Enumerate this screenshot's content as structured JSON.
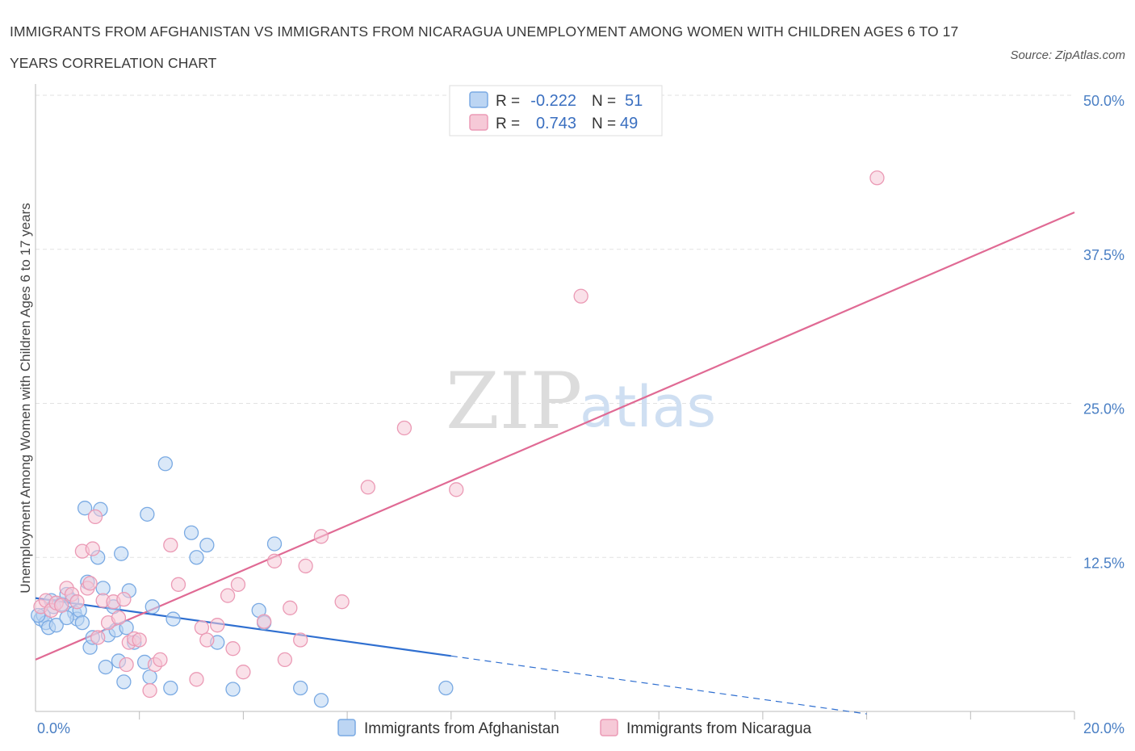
{
  "chart_data": {
    "type": "scatter",
    "title": "IMMIGRANTS FROM AFGHANISTAN VS IMMIGRANTS FROM NICARAGUA UNEMPLOYMENT AMONG WOMEN WITH CHILDREN AGES 6 TO 17 YEARS CORRELATION CHART",
    "source": "Source: ZipAtlas.com",
    "ylabel": "Unemployment Among Women with Children Ages 6 to 17 years",
    "xlim": [
      0,
      20
    ],
    "ylim": [
      0,
      50
    ],
    "x_tick_labels": [
      "0.0%",
      "20.0%"
    ],
    "y_ticks": [
      12.5,
      25.0,
      37.5,
      50.0
    ],
    "y_tick_labels": [
      "12.5%",
      "25.0%",
      "37.5%",
      "50.0%"
    ],
    "watermark": {
      "zip": "ZIP",
      "atlas": "atlas"
    },
    "legend": {
      "r_label": "R =",
      "n_label": "N =",
      "rows": [
        {
          "r": "-0.222",
          "n": "51"
        },
        {
          "r": "0.743",
          "n": "49"
        }
      ]
    },
    "series": [
      {
        "name": "Immigrants from Afghanistan",
        "color": "#7aaae3",
        "fill": "#bcd5f3",
        "line_color": "#2f6fd0",
        "trend": {
          "x0": 0.0,
          "y0": 9.2,
          "x1": 8.0,
          "y1": 4.5,
          "dash_to_x": 16.0
        },
        "points": [
          [
            0.1,
            7.5
          ],
          [
            0.15,
            7.8
          ],
          [
            0.2,
            7.2
          ],
          [
            0.25,
            6.8
          ],
          [
            0.3,
            9.0
          ],
          [
            0.35,
            8.5
          ],
          [
            0.4,
            7.0
          ],
          [
            0.5,
            8.7
          ],
          [
            0.6,
            9.5
          ],
          [
            0.7,
            9.0
          ],
          [
            0.75,
            8.0
          ],
          [
            0.8,
            7.5
          ],
          [
            0.85,
            8.2
          ],
          [
            0.9,
            7.2
          ],
          [
            0.95,
            16.5
          ],
          [
            1.0,
            10.5
          ],
          [
            1.05,
            5.2
          ],
          [
            1.1,
            6.0
          ],
          [
            1.2,
            12.5
          ],
          [
            1.25,
            16.4
          ],
          [
            1.3,
            10.0
          ],
          [
            1.35,
            3.6
          ],
          [
            1.4,
            6.2
          ],
          [
            1.5,
            8.5
          ],
          [
            1.55,
            6.6
          ],
          [
            1.6,
            4.1
          ],
          [
            1.65,
            12.8
          ],
          [
            1.7,
            2.4
          ],
          [
            1.75,
            6.8
          ],
          [
            1.8,
            9.8
          ],
          [
            1.9,
            5.6
          ],
          [
            2.1,
            4.0
          ],
          [
            2.15,
            16.0
          ],
          [
            2.2,
            2.8
          ],
          [
            2.25,
            8.5
          ],
          [
            2.5,
            20.1
          ],
          [
            2.6,
            1.9
          ],
          [
            2.65,
            7.5
          ],
          [
            3.0,
            14.5
          ],
          [
            3.1,
            12.5
          ],
          [
            3.3,
            13.5
          ],
          [
            3.5,
            5.6
          ],
          [
            3.8,
            1.8
          ],
          [
            4.3,
            8.2
          ],
          [
            4.4,
            7.2
          ],
          [
            4.6,
            13.6
          ],
          [
            5.1,
            1.9
          ],
          [
            5.5,
            0.9
          ],
          [
            7.9,
            1.9
          ],
          [
            0.05,
            7.8
          ],
          [
            0.6,
            7.6
          ]
        ]
      },
      {
        "name": "Immigrants from Nicaragua",
        "color": "#eb9ab5",
        "fill": "#f6c9d7",
        "line_color": "#e06a94",
        "trend": {
          "x0": 0.0,
          "y0": 4.2,
          "x1": 20.0,
          "y1": 40.5
        },
        "points": [
          [
            0.1,
            8.5
          ],
          [
            0.2,
            9.0
          ],
          [
            0.3,
            8.2
          ],
          [
            0.4,
            8.8
          ],
          [
            0.5,
            8.6
          ],
          [
            0.6,
            10.0
          ],
          [
            0.7,
            9.5
          ],
          [
            0.8,
            8.9
          ],
          [
            0.9,
            13.0
          ],
          [
            1.0,
            10.0
          ],
          [
            1.05,
            10.4
          ],
          [
            1.1,
            13.2
          ],
          [
            1.15,
            15.8
          ],
          [
            1.2,
            6.0
          ],
          [
            1.3,
            9.0
          ],
          [
            1.4,
            7.2
          ],
          [
            1.5,
            8.9
          ],
          [
            1.6,
            7.6
          ],
          [
            1.7,
            9.1
          ],
          [
            1.75,
            3.8
          ],
          [
            1.8,
            5.6
          ],
          [
            1.9,
            5.9
          ],
          [
            2.0,
            5.8
          ],
          [
            2.2,
            1.7
          ],
          [
            2.3,
            3.8
          ],
          [
            2.4,
            4.2
          ],
          [
            2.6,
            13.5
          ],
          [
            2.75,
            10.3
          ],
          [
            3.1,
            2.6
          ],
          [
            3.2,
            6.8
          ],
          [
            3.3,
            5.8
          ],
          [
            3.5,
            7.0
          ],
          [
            3.7,
            9.4
          ],
          [
            3.8,
            5.1
          ],
          [
            3.9,
            10.3
          ],
          [
            4.0,
            3.2
          ],
          [
            4.4,
            7.3
          ],
          [
            4.6,
            12.2
          ],
          [
            4.8,
            4.2
          ],
          [
            4.9,
            8.4
          ],
          [
            5.1,
            5.8
          ],
          [
            5.2,
            11.8
          ],
          [
            5.5,
            14.2
          ],
          [
            5.9,
            8.9
          ],
          [
            6.4,
            18.2
          ],
          [
            7.1,
            23.0
          ],
          [
            8.1,
            18.0
          ],
          [
            10.5,
            33.7
          ],
          [
            16.2,
            43.3
          ]
        ]
      }
    ]
  }
}
